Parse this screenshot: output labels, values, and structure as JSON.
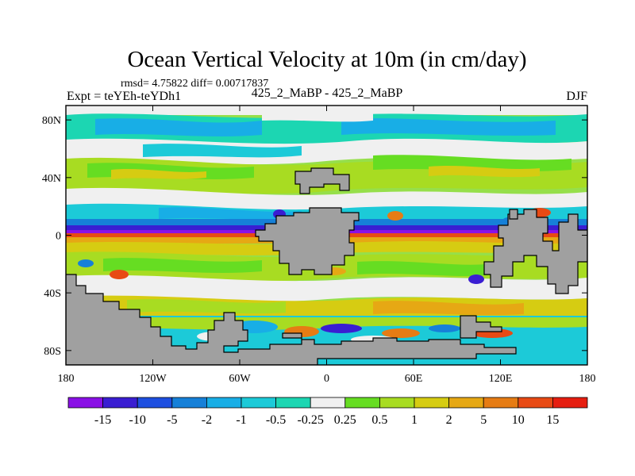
{
  "chart_data": {
    "type": "heatmap",
    "title": "Ocean Vertical Velocity at 10m (in cm/day)",
    "stats_line": "rmsd= 4.75822 diff= 0.00717837",
    "left_label": "Expt = teYEh-teYDh1",
    "center_label": "425_2_MaBP - 425_2_MaBP",
    "right_label": "DJF",
    "x_ticks": [
      "180",
      "120W",
      "60W",
      "0",
      "60E",
      "120E",
      "180"
    ],
    "x_tick_values": [
      -180,
      -120,
      -60,
      0,
      60,
      120,
      180
    ],
    "y_ticks": [
      "80N",
      "40N",
      "0",
      "40S",
      "80S"
    ],
    "y_tick_values": [
      80,
      40,
      0,
      -40,
      -80
    ],
    "xlim": [
      -180,
      180
    ],
    "ylim": [
      -90,
      90
    ],
    "colorbar": {
      "labels": [
        "-15",
        "-10",
        "-5",
        "-2",
        "-1",
        "-0.5",
        "-0.25",
        "0.25",
        "0.5",
        "1",
        "2",
        "5",
        "10",
        "15"
      ],
      "levels": [
        -15,
        -10,
        -5,
        -2,
        -1,
        -0.5,
        -0.25,
        0.25,
        0.5,
        1,
        2,
        5,
        10,
        15
      ],
      "colors": [
        "#8a10e6",
        "#3a1ed2",
        "#1e4fe0",
        "#1680d8",
        "#18aee6",
        "#1ccad8",
        "#1cd6b2",
        "#f0f0f0",
        "#66dd22",
        "#a8dc22",
        "#d6cc12",
        "#e6a814",
        "#e67c14",
        "#e84a14",
        "#e61e10"
      ]
    }
  }
}
